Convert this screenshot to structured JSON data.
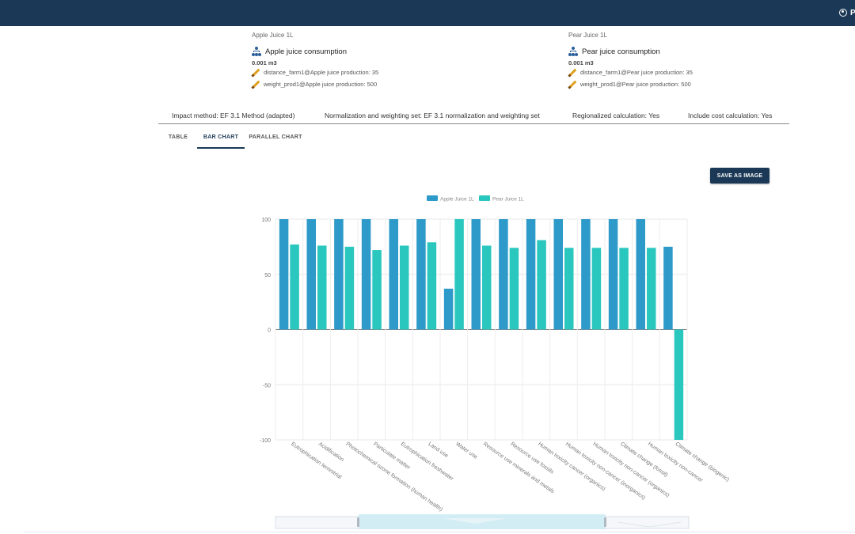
{
  "header": {
    "user_label": "P"
  },
  "products": [
    {
      "name": "Apple Juice 1L",
      "consumption": "Apple juice consumption",
      "amount": "0.001 m3",
      "params": [
        "distance_farm1@Apple juice production: 35",
        "weight_prod1@Apple juice production: 500"
      ]
    },
    {
      "name": "Pear Juice 1L",
      "consumption": "Pear juice consumption",
      "amount": "0.001 m3",
      "params": [
        "distance_farm1@Pear juice production: 35",
        "weight_prod1@Pear juice production: 500"
      ]
    }
  ],
  "info": {
    "impact_method": "Impact method: EF 3.1 Method (adapted)",
    "normalization": "Normalization and weighting set: EF 3.1 normalization and weighting set",
    "regionalized": "Regionalized calculation: Yes",
    "cost": "Include cost calculation: Yes"
  },
  "tabs": [
    {
      "label": "TABLE",
      "active": false
    },
    {
      "label": "BAR CHART",
      "active": true
    },
    {
      "label": "PARALLEL CHART",
      "active": false
    }
  ],
  "save_button": "SAVE AS IMAGE",
  "colors": {
    "navy": "#1b3956",
    "apple": "#2d9ac9",
    "pear": "#2ac7be"
  },
  "chart_data": {
    "type": "bar",
    "categories": [
      "Eutrophication terrestrial",
      "Acidification",
      "Photochemical ozone formation (human health)",
      "Particulate matter",
      "Eutrophication freshwater",
      "Land use",
      "Water use",
      "Resource use minerals and metals",
      "Resource use fossils",
      "Human toxicity cancer (organics)",
      "Human toxicity non-cancer (inorganics)",
      "Human toxicity non-cancer (organics)",
      "Climate change (fossil)",
      "Human toxicity non-cancer",
      "Climate change (biogenic)"
    ],
    "series": [
      {
        "name": "Apple Juice 1L",
        "color": "#2d9ac9",
        "values": [
          100,
          100,
          100,
          100,
          100,
          100,
          37,
          100,
          100,
          100,
          100,
          100,
          100,
          100,
          75
        ]
      },
      {
        "name": "Pear Juice 1L",
        "color": "#2ac7be",
        "values": [
          77,
          76,
          75,
          72,
          76,
          79,
          100,
          76,
          74,
          81,
          74,
          74,
          74,
          74,
          -100
        ]
      }
    ],
    "ylim": [
      -100,
      100
    ],
    "yticks": [
      100,
      50,
      0,
      -50,
      -100
    ],
    "legend": "top-center",
    "grid": true,
    "xlabel": "",
    "ylabel": ""
  }
}
